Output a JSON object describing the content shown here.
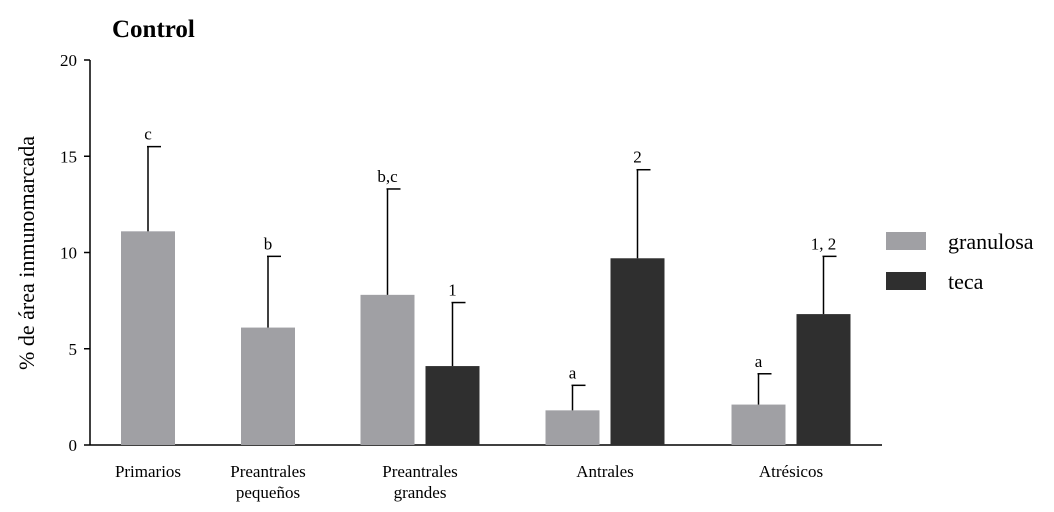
{
  "chart_data": {
    "type": "bar",
    "title": "Control",
    "ylabel": "% de área inmunomarcada",
    "xlabel": "",
    "ylim": [
      0,
      20
    ],
    "yticks": [
      0,
      5,
      10,
      15,
      20
    ],
    "categories": [
      [
        "Primarios"
      ],
      [
        "Preantrales",
        "pequeños"
      ],
      [
        "Preantrales",
        "grandes"
      ],
      [
        "Antrales"
      ],
      [
        "Atrésicos"
      ]
    ],
    "series": [
      {
        "name": "granulosa",
        "color": "#a0a0a4",
        "values": [
          11.1,
          6.1,
          7.8,
          1.8,
          2.1
        ],
        "errors": [
          4.4,
          3.7,
          5.5,
          1.3,
          1.6
        ],
        "labels": [
          "c",
          "b",
          "b,c",
          "a",
          "a"
        ]
      },
      {
        "name": "teca",
        "color": "#2f2f2f",
        "values": [
          null,
          null,
          4.1,
          9.7,
          6.8
        ],
        "errors": [
          null,
          null,
          3.3,
          4.6,
          3.0
        ],
        "labels": [
          "",
          "",
          "1",
          "2",
          "1, 2"
        ]
      }
    ],
    "legend_position": "right",
    "grid": false
  }
}
